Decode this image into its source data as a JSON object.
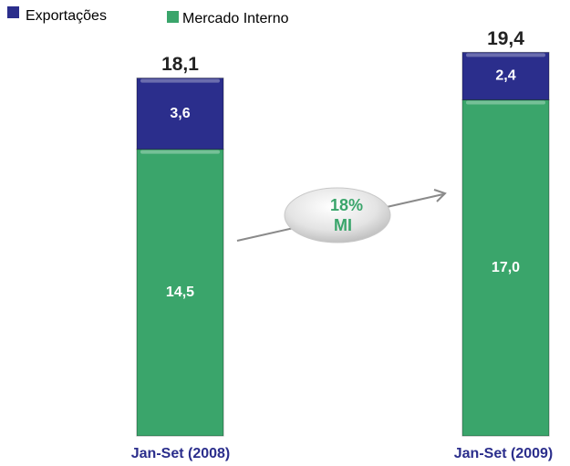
{
  "chart_data": {
    "type": "stacked-bar",
    "categories": [
      "Jan-Set (2008)",
      "Jan-Set (2009)"
    ],
    "series": [
      {
        "name": "Mercado Interno",
        "color": "#3aa56b",
        "values": [
          14.5,
          17.0
        ],
        "value_labels": [
          "14,5",
          "17,0"
        ]
      },
      {
        "name": "Exportações",
        "color": "#2b2e8c",
        "values": [
          3.6,
          2.4
        ],
        "value_labels": [
          "3,6",
          "2,4"
        ]
      }
    ],
    "totals": [
      18.1,
      19.4
    ],
    "total_labels": [
      "18,1",
      "19,4"
    ],
    "annotation": [
      "18%",
      "MI"
    ]
  }
}
